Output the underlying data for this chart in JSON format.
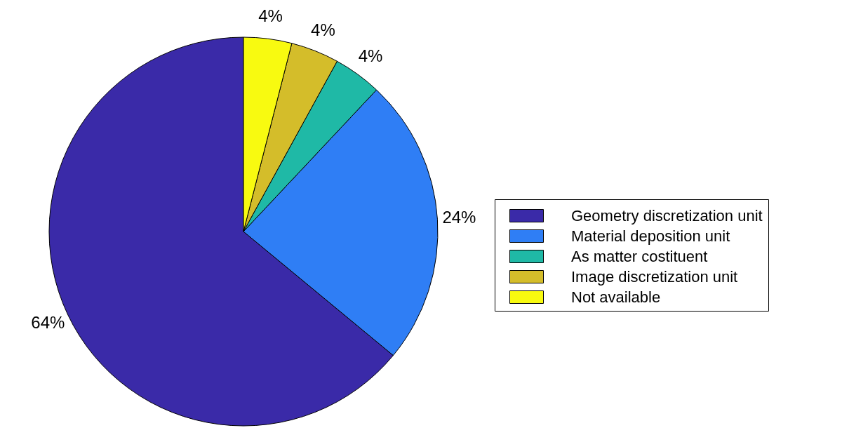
{
  "chart_data": {
    "type": "pie",
    "categories": [
      "Geometry discretization unit",
      "Material deposition unit",
      "As matter costituent",
      "Image discretization unit",
      "Not available"
    ],
    "values": [
      64,
      24,
      4,
      4,
      4
    ],
    "colors": [
      "#3a2aa8",
      "#2f7ef5",
      "#1fb9a6",
      "#d4bd2a",
      "#f8fa10"
    ],
    "value_labels": [
      "64%",
      "24%",
      "4%",
      "4%",
      "4%"
    ],
    "legend": "right"
  }
}
